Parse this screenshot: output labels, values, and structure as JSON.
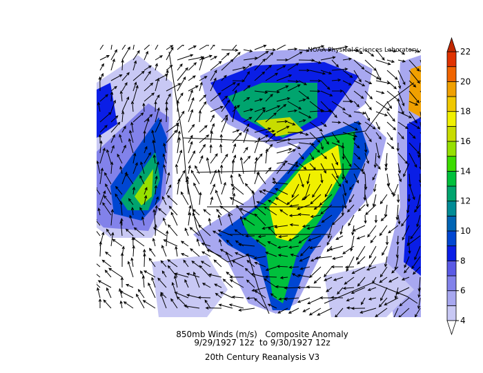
{
  "credit": "NOAA Physical Sciences Laboratory",
  "caption": {
    "line1": "850mb Winds (m/s)   Composite Anomaly",
    "line2": "9/29/1927 12z  to 9/30/1927 12z",
    "line3": "20th Century Reanalysis V3"
  },
  "colorbar": {
    "ticks": [
      4,
      6,
      8,
      10,
      12,
      14,
      16,
      18,
      20,
      22
    ],
    "colors": [
      "#c8c8f4",
      "#a8a8f0",
      "#8282ea",
      "#5a5ae6",
      "#0a1ee6",
      "#0046d2",
      "#0064b4",
      "#008c96",
      "#00a46e",
      "#00c03c",
      "#3cdc00",
      "#96e000",
      "#c8dc00",
      "#f0f000",
      "#f0c800",
      "#f0a000",
      "#f06400",
      "#e03200"
    ],
    "under_color": "#ffffff",
    "over_color": "#c02800"
  }
}
